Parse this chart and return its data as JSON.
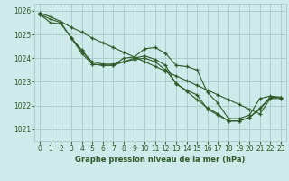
{
  "title": "Graphe pression niveau de la mer (hPa)",
  "bg_color": "#ceeaea",
  "grid_color": "#aacfcf",
  "line_color": "#2d5a27",
  "ylim": [
    1020.5,
    1026.3
  ],
  "xlim": [
    -0.5,
    23.5
  ],
  "yticks": [
    1021,
    1022,
    1023,
    1024,
    1025,
    1026
  ],
  "xticks": [
    0,
    1,
    2,
    3,
    4,
    5,
    6,
    7,
    8,
    9,
    10,
    11,
    12,
    13,
    14,
    15,
    16,
    17,
    18,
    19,
    20,
    21,
    22,
    23
  ],
  "series": [
    {
      "x": [
        0,
        1,
        2,
        3,
        4,
        5,
        6,
        7,
        8,
        9,
        10,
        11,
        12,
        13,
        14,
        15,
        16,
        17,
        18,
        19,
        20,
        21,
        22,
        23
      ],
      "y": [
        1025.85,
        1025.65,
        1025.5,
        1024.85,
        1024.35,
        1023.75,
        1023.7,
        1023.7,
        1024.0,
        1024.05,
        1024.4,
        1024.45,
        1024.2,
        1023.7,
        1023.65,
        1023.5,
        1022.55,
        1022.1,
        1021.45,
        1021.45,
        1021.6,
        1022.3,
        1022.4,
        1022.35
      ]
    },
    {
      "x": [
        0,
        1,
        2,
        3,
        4,
        5,
        6,
        7,
        8,
        9,
        10,
        11,
        12,
        13,
        14,
        15,
        16,
        17,
        18,
        19,
        20,
        21,
        22,
        23
      ],
      "y": [
        1025.85,
        1025.5,
        1025.45,
        1024.85,
        1024.3,
        1023.85,
        1023.75,
        1023.75,
        1023.85,
        1024.0,
        1024.1,
        1023.95,
        1023.7,
        1022.9,
        1022.65,
        1022.45,
        1021.85,
        1021.6,
        1021.35,
        1021.35,
        1021.5,
        1021.9,
        1022.35,
        1022.35
      ]
    },
    {
      "x": [
        3,
        4,
        5,
        6,
        7,
        8,
        9,
        10,
        11,
        12,
        13,
        14,
        15,
        16,
        17,
        18,
        19,
        20,
        21,
        22,
        23
      ],
      "y": [
        1024.85,
        1024.2,
        1023.75,
        1023.7,
        1023.7,
        1023.85,
        1023.95,
        1024.0,
        1023.85,
        1023.5,
        1022.95,
        1022.6,
        1022.25,
        1021.9,
        1021.65,
        1021.35,
        1021.35,
        1021.5,
        1021.85,
        1022.35,
        1022.35
      ]
    },
    {
      "x": [
        0,
        1,
        2,
        3,
        4,
        5,
        6,
        7,
        8,
        9,
        10,
        11,
        12,
        13,
        14,
        15,
        16,
        17,
        18,
        19,
        20,
        21,
        22,
        23
      ],
      "y": [
        1025.9,
        1025.75,
        1025.55,
        1025.3,
        1025.1,
        1024.85,
        1024.65,
        1024.45,
        1024.25,
        1024.05,
        1023.85,
        1023.65,
        1023.45,
        1023.25,
        1023.05,
        1022.85,
        1022.65,
        1022.45,
        1022.25,
        1022.05,
        1021.85,
        1021.65,
        1022.3,
        1022.3
      ]
    }
  ]
}
